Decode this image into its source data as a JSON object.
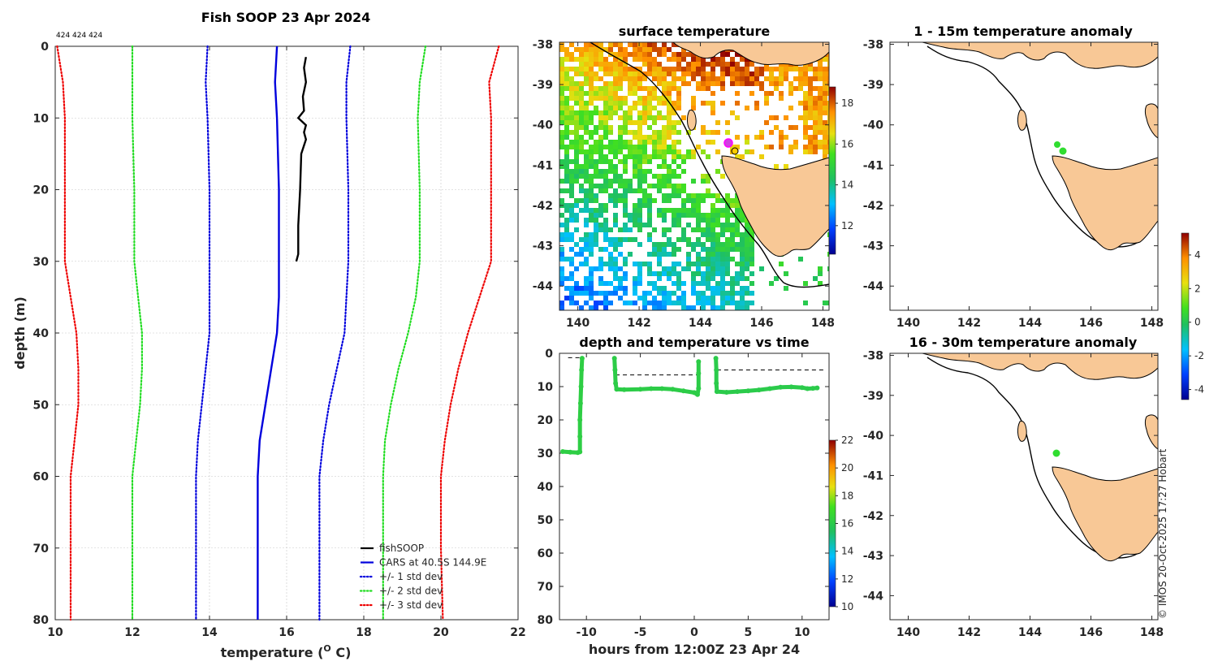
{
  "profile": {
    "title": "Fish SOOP 23 Apr 2024",
    "corner_note": "424 424 424",
    "xlabel": "temperature (",
    "xlabel_deg": "O",
    "xlabel_unit": " C)",
    "ylabel": "depth (m)",
    "xticks": [
      "10",
      "12",
      "14",
      "16",
      "18",
      "20",
      "22"
    ],
    "yticks": [
      "0",
      "10",
      "20",
      "30",
      "40",
      "50",
      "60",
      "70",
      "80"
    ],
    "legend": [
      {
        "label": "fishSOOP",
        "color": "#000000",
        "style": "solid"
      },
      {
        "label": "CARS at 40.5S 144.9E",
        "color": "#0000dd",
        "style": "solid"
      },
      {
        "label": "+/- 1 std dev",
        "color": "#0000dd",
        "style": "dotted"
      },
      {
        "label": "+/- 2 std dev",
        "color": "#22dd22",
        "style": "dotted"
      },
      {
        "label": "+/- 3 std dev",
        "color": "#ee0000",
        "style": "dotted"
      }
    ]
  },
  "sst": {
    "title": "surface temperature",
    "xticks": [
      "140",
      "142",
      "144",
      "146",
      "148"
    ],
    "yticks": [
      "-38",
      "-39",
      "-40",
      "-41",
      "-42",
      "-43",
      "-44"
    ],
    "cbticks": [
      "18",
      "16",
      "14",
      "12"
    ]
  },
  "timeplot": {
    "title": "depth and temperature vs time",
    "xlabel": "hours from 12:00Z 23 Apr 24",
    "xticks": [
      "-10",
      "-5",
      "0",
      "5",
      "10"
    ],
    "yticks": [
      "0",
      "10",
      "20",
      "30",
      "40",
      "50",
      "60",
      "70",
      "80"
    ],
    "cbticks": [
      "22",
      "20",
      "18",
      "16",
      "14",
      "12",
      "10"
    ]
  },
  "anom1": {
    "title": "1 - 15m temperature anomaly",
    "xticks": [
      "140",
      "142",
      "144",
      "146",
      "148"
    ],
    "yticks": [
      "-38",
      "-39",
      "-40",
      "-41",
      "-42",
      "-43",
      "-44"
    ]
  },
  "anom2": {
    "title": "16 - 30m temperature anomaly",
    "xticks": [
      "140",
      "142",
      "144",
      "146",
      "148"
    ],
    "yticks": [
      "-38",
      "-39",
      "-40",
      "-41",
      "-42",
      "-43",
      "-44"
    ]
  },
  "anom_cbticks": [
    "4",
    "2",
    "0",
    "-2",
    "-4"
  ],
  "credit": "© IMOS 20-Oct-2025 17:27 Hobart",
  "chart_data": [
    {
      "type": "line",
      "title": "Fish SOOP 23 Apr 2024",
      "xlabel": "temperature (O C)",
      "ylabel": "depth (m)",
      "xlim": [
        10,
        22
      ],
      "ylim": [
        80,
        0
      ],
      "y_reversed": true,
      "series": [
        {
          "name": "fishSOOP",
          "color": "#000000",
          "style": "solid",
          "points": [
            [
              16.5,
              1.5
            ],
            [
              16.45,
              3
            ],
            [
              16.5,
              5
            ],
            [
              16.42,
              7
            ],
            [
              16.45,
              9
            ],
            [
              16.3,
              10
            ],
            [
              16.5,
              11
            ],
            [
              16.45,
              12
            ],
            [
              16.5,
              13
            ],
            [
              16.38,
              15
            ],
            [
              16.35,
              20
            ],
            [
              16.3,
              25
            ],
            [
              16.3,
              29
            ],
            [
              16.25,
              30
            ]
          ]
        },
        {
          "name": "CARS at 40.5S 144.9E",
          "color": "#0000dd",
          "style": "solid",
          "points": [
            [
              15.75,
              0
            ],
            [
              15.7,
              5
            ],
            [
              15.75,
              10
            ],
            [
              15.8,
              20
            ],
            [
              15.8,
              30
            ],
            [
              15.8,
              35
            ],
            [
              15.75,
              40
            ],
            [
              15.6,
              45
            ],
            [
              15.45,
              50
            ],
            [
              15.3,
              55
            ],
            [
              15.25,
              60
            ],
            [
              15.25,
              70
            ],
            [
              15.25,
              80
            ]
          ]
        },
        {
          "name": "-1 std dev",
          "color": "#0000dd",
          "style": "dotted",
          "points": [
            [
              13.95,
              0
            ],
            [
              13.9,
              5
            ],
            [
              13.95,
              10
            ],
            [
              14.0,
              20
            ],
            [
              14.0,
              30
            ],
            [
              14.0,
              35
            ],
            [
              14.0,
              40
            ],
            [
              13.9,
              45
            ],
            [
              13.8,
              50
            ],
            [
              13.7,
              55
            ],
            [
              13.65,
              60
            ],
            [
              13.65,
              70
            ],
            [
              13.65,
              80
            ]
          ]
        },
        {
          "name": "+1 std dev",
          "color": "#0000dd",
          "style": "dotted",
          "points": [
            [
              17.65,
              0
            ],
            [
              17.55,
              5
            ],
            [
              17.55,
              10
            ],
            [
              17.6,
              20
            ],
            [
              17.6,
              30
            ],
            [
              17.55,
              35
            ],
            [
              17.5,
              40
            ],
            [
              17.3,
              45
            ],
            [
              17.1,
              50
            ],
            [
              16.95,
              55
            ],
            [
              16.85,
              60
            ],
            [
              16.85,
              70
            ],
            [
              16.85,
              80
            ]
          ]
        },
        {
          "name": "-2 std dev",
          "color": "#22dd22",
          "style": "dotted",
          "points": [
            [
              12.0,
              0
            ],
            [
              12.0,
              5
            ],
            [
              12.0,
              10
            ],
            [
              12.05,
              20
            ],
            [
              12.05,
              30
            ],
            [
              12.15,
              35
            ],
            [
              12.25,
              40
            ],
            [
              12.25,
              45
            ],
            [
              12.2,
              50
            ],
            [
              12.1,
              55
            ],
            [
              12.0,
              60
            ],
            [
              12.0,
              70
            ],
            [
              12.0,
              80
            ]
          ]
        },
        {
          "name": "+2 std dev",
          "color": "#22dd22",
          "style": "dotted",
          "points": [
            [
              19.6,
              0
            ],
            [
              19.45,
              5
            ],
            [
              19.4,
              10
            ],
            [
              19.45,
              20
            ],
            [
              19.45,
              30
            ],
            [
              19.35,
              35
            ],
            [
              19.15,
              40
            ],
            [
              18.9,
              45
            ],
            [
              18.7,
              50
            ],
            [
              18.55,
              55
            ],
            [
              18.5,
              60
            ],
            [
              18.5,
              70
            ],
            [
              18.5,
              80
            ]
          ]
        },
        {
          "name": "-3 std dev",
          "color": "#ee0000",
          "style": "dotted",
          "points": [
            [
              10.05,
              0
            ],
            [
              10.2,
              5
            ],
            [
              10.25,
              10
            ],
            [
              10.25,
              20
            ],
            [
              10.25,
              30
            ],
            [
              10.4,
              35
            ],
            [
              10.55,
              40
            ],
            [
              10.6,
              45
            ],
            [
              10.6,
              50
            ],
            [
              10.5,
              55
            ],
            [
              10.4,
              60
            ],
            [
              10.4,
              70
            ],
            [
              10.4,
              80
            ]
          ]
        },
        {
          "name": "+3 std dev",
          "color": "#ee0000",
          "style": "dotted",
          "points": [
            [
              21.5,
              0
            ],
            [
              21.25,
              5
            ],
            [
              21.3,
              10
            ],
            [
              21.3,
              20
            ],
            [
              21.3,
              30
            ],
            [
              21.0,
              35
            ],
            [
              20.7,
              40
            ],
            [
              20.45,
              45
            ],
            [
              20.25,
              50
            ],
            [
              20.1,
              55
            ],
            [
              20.0,
              60
            ],
            [
              20.0,
              70
            ],
            [
              20.05,
              80
            ]
          ]
        }
      ]
    },
    {
      "type": "scatter",
      "title": "depth and temperature vs time",
      "xlabel": "hours from 12:00Z 23 Apr 24",
      "ylabel": "depth",
      "xlim": [
        -12.5,
        12.5
      ],
      "ylim": [
        80,
        0
      ],
      "y_reversed": true,
      "colorbar_range": [
        10,
        22
      ],
      "segments": [
        {
          "temp": 16.2,
          "points": [
            [
              -12.2,
              29.5
            ],
            [
              -11.5,
              29.7
            ],
            [
              -10.8,
              29.8
            ],
            [
              -10.6,
              29.6
            ],
            [
              -10.6,
              25
            ],
            [
              -10.6,
              20
            ],
            [
              -10.55,
              15
            ],
            [
              -10.5,
              10
            ],
            [
              -10.45,
              5
            ],
            [
              -10.4,
              1.5
            ]
          ]
        },
        {
          "temp": 16.1,
          "points": [
            [
              -7.4,
              1.5
            ],
            [
              -7.35,
              5
            ],
            [
              -7.3,
              9
            ],
            [
              -7.2,
              10.8
            ],
            [
              -6.5,
              10.9
            ],
            [
              -5,
              10.8
            ],
            [
              -4,
              10.6
            ],
            [
              -3,
              10.6
            ],
            [
              -2,
              10.8
            ],
            [
              -1,
              11.3
            ],
            [
              0,
              11.8
            ],
            [
              0.3,
              12.4
            ],
            [
              0.4,
              10.5
            ],
            [
              0.4,
              6
            ],
            [
              0.4,
              2.5
            ]
          ]
        },
        {
          "temp": 16.0,
          "points": [
            [
              2.0,
              1.5
            ],
            [
              2.05,
              5
            ],
            [
              2.05,
              9
            ],
            [
              2.1,
              11.5
            ],
            [
              3,
              11.7
            ],
            [
              4,
              11.5
            ],
            [
              5,
              11.3
            ],
            [
              6,
              11.0
            ],
            [
              7,
              10.6
            ],
            [
              8,
              10.2
            ],
            [
              9,
              10.1
            ],
            [
              10,
              10.3
            ],
            [
              10.5,
              10.6
            ],
            [
              11.0,
              10.5
            ],
            [
              11.4,
              10.4
            ]
          ]
        }
      ],
      "dashed_reference_lines": [
        {
          "x": [
            -11.7,
            -10.5
          ],
          "y": 1.3
        },
        {
          "x": [
            -7.3,
            0.3
          ],
          "y": 6.5
        },
        {
          "x": [
            2.1,
            12.0
          ],
          "y": 5.0
        }
      ]
    }
  ]
}
